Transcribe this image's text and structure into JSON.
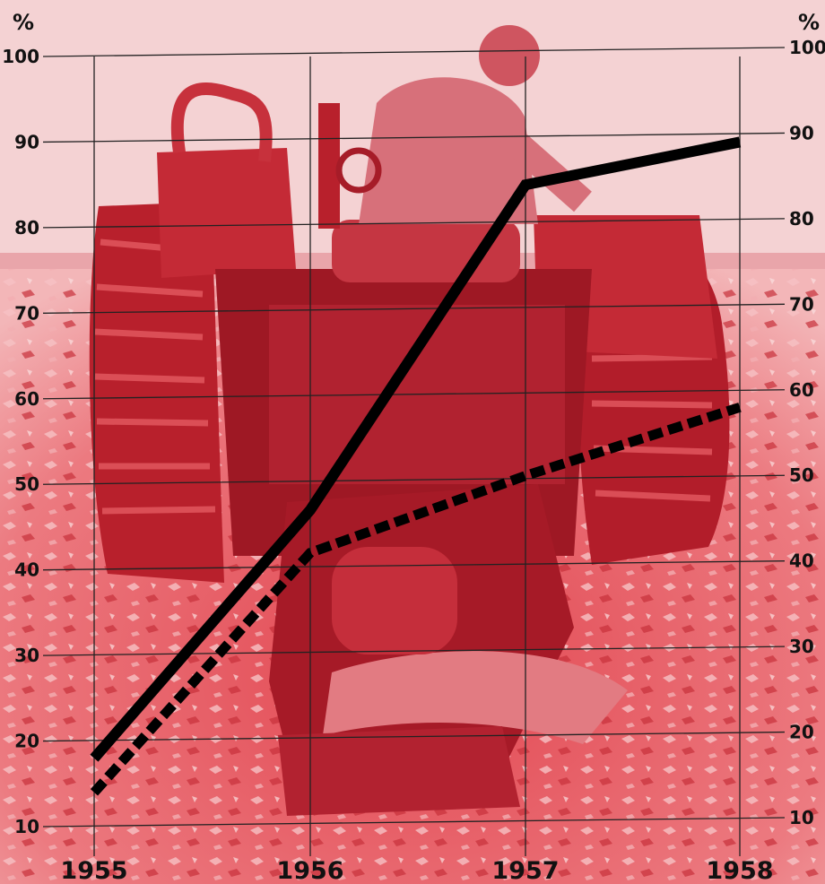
{
  "chart_data": {
    "type": "line",
    "categories": [
      "1955",
      "1956",
      "1957",
      "1958"
    ],
    "x_label_text": [
      "1955",
      "1956",
      "1957",
      "1958"
    ],
    "unit_left": "%",
    "unit_right": "%",
    "ylim": [
      10,
      100
    ],
    "y_ticks": [
      "10",
      "20",
      "30",
      "40",
      "50",
      "60",
      "70",
      "80",
      "90",
      "100"
    ],
    "grid": true,
    "series": [
      {
        "style": "solid",
        "values": [
          18,
          47,
          85,
          90
        ]
      },
      {
        "style": "dashed",
        "values": [
          14,
          42,
          51,
          59
        ]
      }
    ]
  },
  "colors": {
    "background": "#f6dcdc",
    "photo_red": "#e8535a",
    "photo_dark": "#b8202c",
    "line": "#000000",
    "grid": "#222222"
  }
}
